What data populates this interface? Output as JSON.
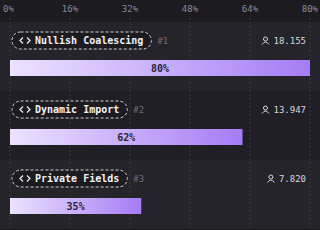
{
  "chart_data": {
    "type": "bar",
    "orientation": "horizontal",
    "categories": [
      "Nullish Coalescing",
      "Dynamic Import",
      "Private Fields"
    ],
    "ranks": [
      "#1",
      "#2",
      "#3"
    ],
    "users": [
      18155,
      13947,
      7820
    ],
    "users_labels": [
      "18.155",
      "13.947",
      "7.820"
    ],
    "values": [
      80,
      62,
      35
    ],
    "value_labels": [
      "80%",
      "62%",
      "35%"
    ],
    "data_labels": true,
    "xlim": [
      0,
      80
    ],
    "xticks": [
      {
        "value": 0,
        "label": "0%"
      },
      {
        "value": 16,
        "label": "16%"
      },
      {
        "value": 32,
        "label": "32%"
      },
      {
        "value": 48,
        "label": "48%"
      },
      {
        "value": 64,
        "label": "64%"
      },
      {
        "value": 80,
        "label": "80%"
      }
    ],
    "grid": true,
    "color": "#a57cf5"
  }
}
